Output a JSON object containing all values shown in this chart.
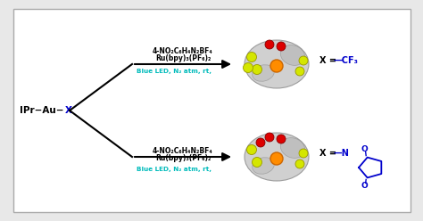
{
  "bg_color": "#e8e8e8",
  "panel_bg": "#ffffff",
  "panel_border": "#aaaaaa",
  "cyan_color": "#00bbbb",
  "blue_color": "#0000cc",
  "black_color": "#000000",
  "reagent1_line1": "4-NO₂C₆H₄N₂BF₄",
  "reagent1_line2": "Ru(bpy)₃(PF₆)₂",
  "reagent2_line1": "Blue LED, N₂ atm, rt,",
  "x_label": "X"
}
